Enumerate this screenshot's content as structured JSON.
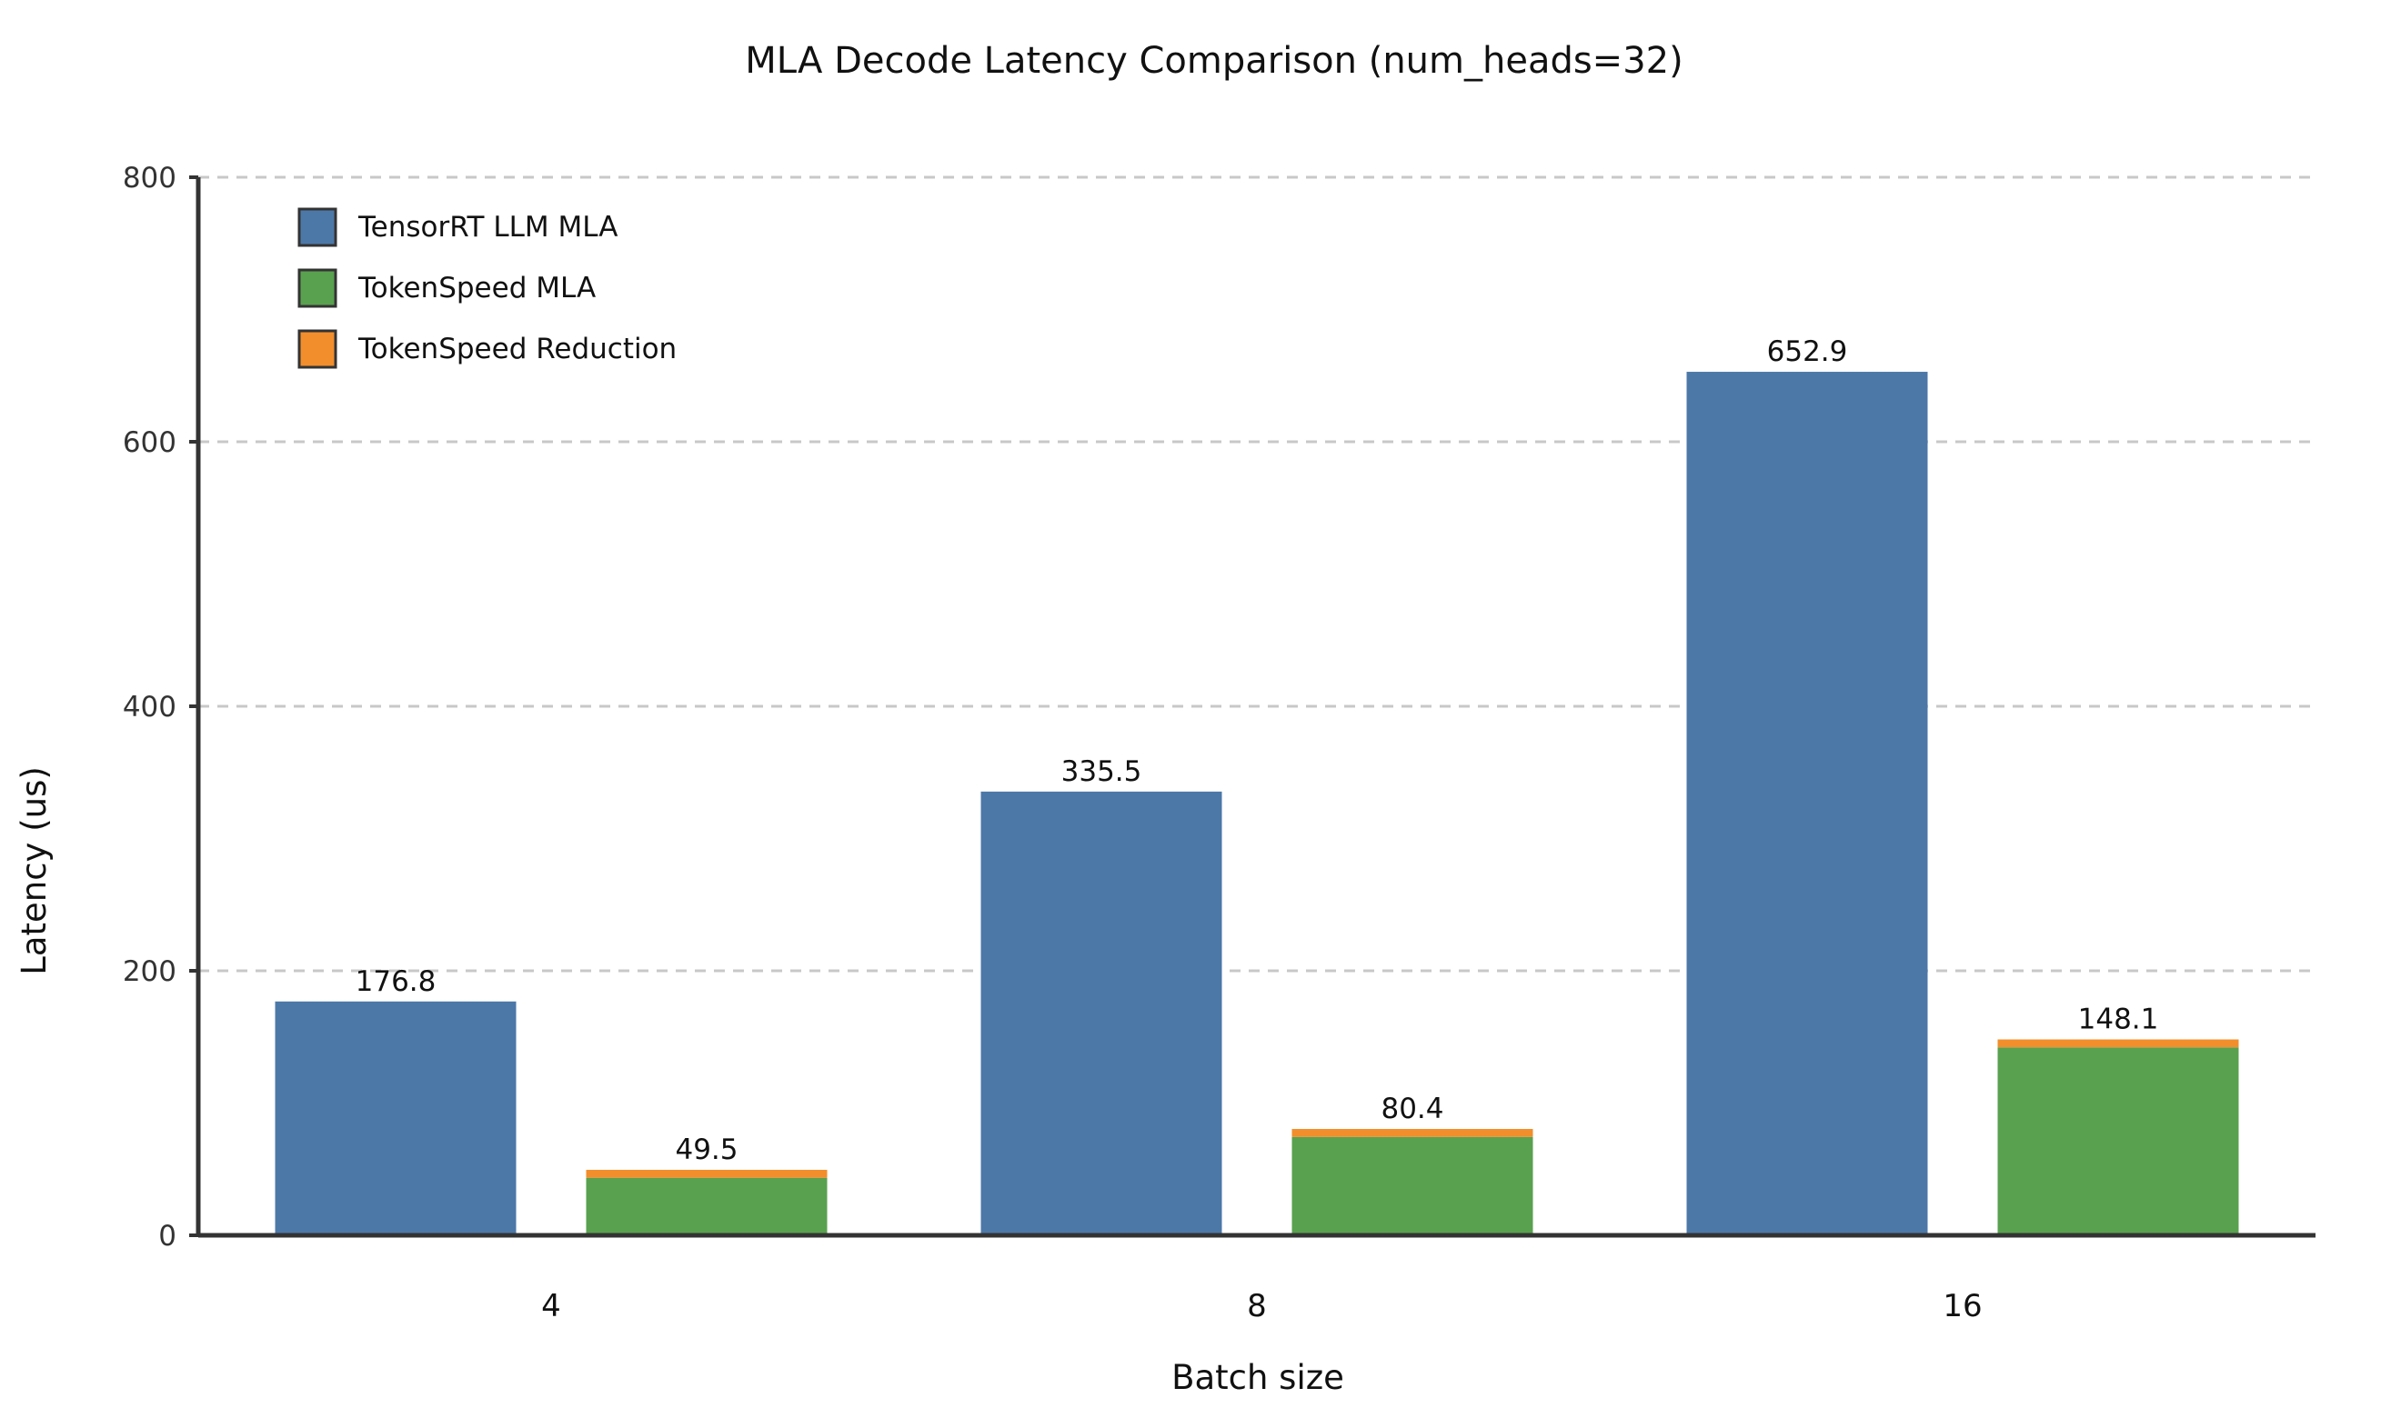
{
  "chart_data": {
    "type": "bar",
    "title": "MLA Decode Latency Comparison (num_heads=32)",
    "xlabel": "Batch size",
    "ylabel": "Latency (us)",
    "ylim": [
      0,
      800
    ],
    "yticks": [
      0,
      200,
      400,
      600,
      800
    ],
    "grid": true,
    "legend_position": "top-left",
    "categories": [
      "4",
      "8",
      "16"
    ],
    "series": [
      {
        "name": "TensorRT LLM MLA",
        "color": "#4c78a8",
        "values": [
          176.8,
          335.5,
          652.9
        ],
        "labels": [
          "176.8",
          "335.5",
          "652.9"
        ]
      },
      {
        "name": "TokenSpeed MLA",
        "color": "#59a14f",
        "values": [
          43.5,
          74.4,
          142.1
        ],
        "stack_group": "tokenspeed"
      },
      {
        "name": "TokenSpeed Reduction",
        "color": "#f28e2b",
        "values": [
          6.0,
          6.0,
          6.0
        ],
        "stack_group": "tokenspeed"
      }
    ],
    "stack_totals": {
      "tokenspeed": [
        "49.5",
        "80.4",
        "148.1"
      ]
    }
  }
}
